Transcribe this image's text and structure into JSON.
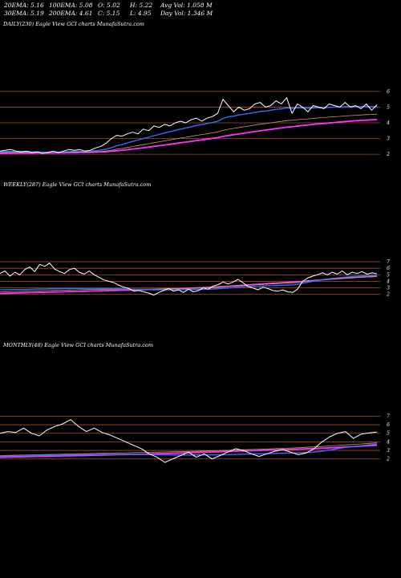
{
  "stats": {
    "ema20": "20EMA: 5.16",
    "ema100": "100EMA: 5.08",
    "open": "O: 5.02",
    "high": "H: 5.22",
    "avg_vol": "Avg Vol: 1.058  M",
    "ema30": "30EMA: 5.19",
    "ema200": "200EMA: 4.61",
    "close": "C: 5.15",
    "low": "L: 4.95",
    "day_vol": "Day Vol: 1.346  M"
  },
  "colors": {
    "background": "#000000",
    "price_line": "#ffffff",
    "ema_fast": "#3b6bff",
    "ema_slow": "#ff33ff",
    "ema_mid": "#c8a060",
    "level_line": "#a0522d"
  },
  "chart_data": [
    {
      "type": "line",
      "title": "DAILY(230) Eagle  View  GCI charts MunafaSutra.com",
      "y_ticks": [
        "6",
        "5",
        "4",
        "3",
        "2"
      ],
      "levels": [
        6,
        5,
        4,
        3,
        2
      ],
      "ylim": [
        1.8,
        6.3
      ],
      "series": [
        {
          "role": "price",
          "color": "#ffffff",
          "values": [
            2.2,
            2.25,
            2.3,
            2.2,
            2.15,
            2.2,
            2.1,
            2.15,
            2.05,
            2.1,
            2.2,
            2.1,
            2.2,
            2.3,
            2.25,
            2.3,
            2.2,
            2.25,
            2.4,
            2.5,
            2.7,
            3.0,
            3.2,
            3.15,
            3.3,
            3.4,
            3.3,
            3.6,
            3.5,
            3.8,
            3.7,
            3.9,
            3.8,
            4.0,
            4.1,
            4.0,
            4.2,
            4.3,
            4.1,
            4.3,
            4.4,
            4.6,
            5.5,
            5.1,
            4.7,
            5.0,
            4.8,
            4.9,
            5.2,
            5.3,
            5.0,
            5.1,
            5.4,
            5.2,
            5.6,
            4.6,
            5.2,
            5.0,
            4.7,
            5.1,
            5.0,
            4.9,
            5.2,
            5.1,
            5.0,
            5.3,
            5.0,
            5.1,
            4.9,
            5.2,
            4.8,
            5.15
          ]
        },
        {
          "role": "ema-fast",
          "color": "#3b6bff",
          "values": [
            2.15,
            2.17,
            2.18,
            2.18,
            2.17,
            2.17,
            2.15,
            2.15,
            2.13,
            2.13,
            2.14,
            2.14,
            2.15,
            2.17,
            2.18,
            2.19,
            2.19,
            2.2,
            2.22,
            2.26,
            2.32,
            2.42,
            2.53,
            2.62,
            2.72,
            2.82,
            2.9,
            3.0,
            3.08,
            3.18,
            3.26,
            3.35,
            3.43,
            3.52,
            3.6,
            3.67,
            3.75,
            3.83,
            3.88,
            3.95,
            4.02,
            4.1,
            4.28,
            4.38,
            4.43,
            4.5,
            4.55,
            4.6,
            4.66,
            4.72,
            4.75,
            4.8,
            4.86,
            4.89,
            4.95,
            4.92,
            4.95,
            4.96,
            4.93,
            4.95,
            4.96,
            4.95,
            4.98,
            5.0,
            5.0,
            5.03,
            5.02,
            5.04,
            5.02,
            5.05,
            5.02,
            5.05
          ]
        },
        {
          "role": "ema-mid",
          "color": "#c8a060",
          "values": [
            2.1,
            2.11,
            2.12,
            2.12,
            2.12,
            2.12,
            2.12,
            2.12,
            2.11,
            2.11,
            2.11,
            2.11,
            2.12,
            2.13,
            2.13,
            2.14,
            2.14,
            2.15,
            2.16,
            2.18,
            2.21,
            2.26,
            2.32,
            2.37,
            2.43,
            2.49,
            2.55,
            2.61,
            2.67,
            2.73,
            2.79,
            2.85,
            2.91,
            2.97,
            3.03,
            3.08,
            3.14,
            3.2,
            3.25,
            3.3,
            3.36,
            3.42,
            3.52,
            3.59,
            3.64,
            3.7,
            3.75,
            3.8,
            3.86,
            3.91,
            3.95,
            4.0,
            4.05,
            4.09,
            4.14,
            4.16,
            4.2,
            4.23,
            4.25,
            4.28,
            4.31,
            4.33,
            4.36,
            4.39,
            4.41,
            4.44,
            4.46,
            4.48,
            4.5,
            4.52,
            4.53,
            4.55
          ]
        },
        {
          "role": "ema-slow",
          "color": "#ff33ff",
          "values": [
            2.05,
            2.06,
            2.06,
            2.07,
            2.07,
            2.07,
            2.07,
            2.08,
            2.08,
            2.08,
            2.08,
            2.09,
            2.09,
            2.1,
            2.1,
            2.11,
            2.11,
            2.12,
            2.13,
            2.14,
            2.16,
            2.19,
            2.22,
            2.25,
            2.29,
            2.33,
            2.37,
            2.41,
            2.45,
            2.5,
            2.54,
            2.59,
            2.63,
            2.68,
            2.73,
            2.77,
            2.82,
            2.87,
            2.91,
            2.96,
            3.01,
            3.06,
            3.13,
            3.19,
            3.24,
            3.29,
            3.34,
            3.39,
            3.44,
            3.49,
            3.54,
            3.58,
            3.63,
            3.67,
            3.72,
            3.75,
            3.79,
            3.83,
            3.86,
            3.9,
            3.93,
            3.96,
            3.99,
            4.02,
            4.05,
            4.08,
            4.1,
            4.13,
            4.15,
            4.17,
            4.19,
            4.21
          ]
        }
      ]
    },
    {
      "type": "line",
      "title": "WEEKLY(287) Eagle  View  GCI charts MunafaSutra.com",
      "y_ticks": [
        "7",
        "6",
        "5",
        "4",
        "3",
        "2"
      ],
      "levels": [
        7,
        6,
        5,
        4,
        3,
        2
      ],
      "ylim": [
        1.6,
        7.5
      ],
      "series": [
        {
          "role": "price",
          "color": "#ffffff",
          "values": [
            5.2,
            5.6,
            4.8,
            5.4,
            5.0,
            5.8,
            6.2,
            5.5,
            6.6,
            6.3,
            6.8,
            5.9,
            5.5,
            5.2,
            5.8,
            6.0,
            5.4,
            5.1,
            5.6,
            5.0,
            4.6,
            4.2,
            4.0,
            3.8,
            3.4,
            3.1,
            2.9,
            2.5,
            2.6,
            2.4,
            2.2,
            1.9,
            2.3,
            2.6,
            2.9,
            2.5,
            2.7,
            2.3,
            2.8,
            2.4,
            2.6,
            3.0,
            2.8,
            3.3,
            3.5,
            3.9,
            3.6,
            3.9,
            4.3,
            3.8,
            3.2,
            3.0,
            2.7,
            3.1,
            2.9,
            2.6,
            2.5,
            2.7,
            2.4,
            2.3,
            2.8,
            4.0,
            4.5,
            4.8,
            5.0,
            5.3,
            5.0,
            5.4,
            5.1,
            5.6,
            5.0,
            5.4,
            5.2,
            5.5,
            5.1,
            5.3,
            5.15
          ]
        },
        {
          "role": "ema-fast",
          "color": "#3b6bff",
          "values": [
            2.7,
            2.72,
            2.73,
            2.74,
            2.75,
            2.76,
            2.78,
            2.8,
            2.82,
            2.84,
            2.86,
            2.88,
            2.89,
            2.9,
            2.91,
            2.92,
            2.92,
            2.93,
            2.93,
            2.93,
            2.92,
            2.91,
            2.9,
            2.88,
            2.86,
            2.84,
            2.82,
            2.79,
            2.77,
            2.75,
            2.73,
            2.71,
            2.7,
            2.7,
            2.71,
            2.72,
            2.73,
            2.73,
            2.74,
            2.75,
            2.76,
            2.78,
            2.8,
            2.83,
            2.87,
            2.93,
            2.98,
            3.04,
            3.12,
            3.18,
            3.22,
            3.25,
            3.27,
            3.3,
            3.33,
            3.35,
            3.38,
            3.41,
            3.44,
            3.47,
            3.55,
            3.7,
            3.85,
            4.0,
            4.12,
            4.25,
            4.35,
            4.45,
            4.52,
            4.6,
            4.66,
            4.72,
            4.77,
            4.82,
            4.85,
            4.88,
            4.9
          ]
        },
        {
          "role": "ema-mid",
          "color": "#c8a060",
          "values": [
            2.4,
            2.42,
            2.44,
            2.46,
            2.48,
            2.5,
            2.52,
            2.54,
            2.56,
            2.58,
            2.6,
            2.62,
            2.64,
            2.66,
            2.68,
            2.7,
            2.72,
            2.73,
            2.74,
            2.75,
            2.76,
            2.77,
            2.78,
            2.79,
            2.79,
            2.8,
            2.8,
            2.81,
            2.81,
            2.82,
            2.82,
            2.83,
            2.84,
            2.85,
            2.86,
            2.88,
            2.9,
            2.92,
            2.94,
            2.96,
            2.98,
            3.01,
            3.04,
            3.08,
            3.12,
            3.17,
            3.22,
            3.27,
            3.33,
            3.38,
            3.42,
            3.46,
            3.5,
            3.54,
            3.58,
            3.62,
            3.66,
            3.7,
            3.74,
            3.78,
            3.84,
            3.92,
            4.0,
            4.08,
            4.15,
            4.22,
            4.28,
            4.34,
            4.4,
            4.45,
            4.5,
            4.55,
            4.59,
            4.63,
            4.67,
            4.7,
            4.73
          ]
        },
        {
          "role": "ema-slow",
          "color": "#ff33ff",
          "values": [
            2.15,
            2.17,
            2.19,
            2.21,
            2.23,
            2.25,
            2.27,
            2.29,
            2.31,
            2.33,
            2.35,
            2.37,
            2.39,
            2.41,
            2.43,
            2.45,
            2.47,
            2.49,
            2.51,
            2.53,
            2.55,
            2.57,
            2.59,
            2.61,
            2.63,
            2.65,
            2.67,
            2.69,
            2.71,
            2.73,
            2.75,
            2.77,
            2.79,
            2.81,
            2.83,
            2.86,
            2.89,
            2.92,
            2.95,
            2.98,
            3.01,
            3.04,
            3.08,
            3.12,
            3.16,
            3.2,
            3.25,
            3.3,
            3.35,
            3.4,
            3.45,
            3.5,
            3.55,
            3.6,
            3.65,
            3.7,
            3.75,
            3.8,
            3.85,
            3.9,
            3.95,
            4.0,
            4.06,
            4.12,
            4.18,
            4.24,
            4.3,
            4.36,
            4.42,
            4.48,
            4.53,
            4.58,
            4.63,
            4.68,
            4.72,
            4.76,
            4.8
          ]
        }
      ]
    },
    {
      "type": "line",
      "title": "MONTHLY(48) Eagle  View  GCI charts MunafaSutra.com",
      "y_ticks": [
        "7",
        "6",
        "5",
        "4",
        "3",
        "2"
      ],
      "levels": [
        7,
        6,
        5,
        4,
        3,
        2
      ],
      "ylim": [
        1.6,
        7.6
      ],
      "series": [
        {
          "role": "price",
          "color": "#ffffff",
          "values": [
            5.0,
            5.2,
            5.1,
            5.6,
            5.0,
            4.7,
            5.4,
            5.8,
            6.1,
            6.6,
            5.8,
            5.2,
            5.6,
            5.1,
            4.8,
            4.4,
            4.0,
            3.6,
            3.2,
            2.6,
            2.2,
            1.6,
            2.0,
            2.4,
            2.8,
            2.2,
            2.6,
            2.0,
            2.4,
            2.8,
            3.2,
            3.0,
            2.6,
            2.3,
            2.6,
            2.9,
            3.1,
            2.8,
            2.5,
            2.7,
            3.2,
            4.0,
            4.6,
            5.0,
            5.2,
            4.4,
            4.9,
            5.05,
            5.15
          ]
        },
        {
          "role": "ema-fast",
          "color": "#3b6bff",
          "values": [
            2.3,
            2.32,
            2.34,
            2.36,
            2.38,
            2.4,
            2.42,
            2.44,
            2.46,
            2.48,
            2.5,
            2.52,
            2.53,
            2.54,
            2.55,
            2.55,
            2.55,
            2.54,
            2.53,
            2.52,
            2.5,
            2.48,
            2.47,
            2.46,
            2.46,
            2.46,
            2.47,
            2.47,
            2.48,
            2.5,
            2.53,
            2.56,
            2.58,
            2.6,
            2.62,
            2.65,
            2.68,
            2.7,
            2.72,
            2.75,
            2.8,
            2.9,
            3.05,
            3.2,
            3.35,
            3.45,
            3.55,
            3.65,
            3.75
          ]
        },
        {
          "role": "ema-mid",
          "color": "#c8a060",
          "values": [
            2.4,
            2.42,
            2.44,
            2.46,
            2.48,
            2.5,
            2.52,
            2.54,
            2.56,
            2.58,
            2.6,
            2.62,
            2.64,
            2.66,
            2.68,
            2.7,
            2.72,
            2.74,
            2.76,
            2.78,
            2.8,
            2.82,
            2.84,
            2.86,
            2.88,
            2.9,
            2.93,
            2.96,
            2.99,
            3.02,
            3.05,
            3.08,
            3.11,
            3.14,
            3.17,
            3.2,
            3.24,
            3.28,
            3.32,
            3.36,
            3.41,
            3.46,
            3.52,
            3.58,
            3.64,
            3.7,
            3.76,
            3.82,
            3.88
          ]
        },
        {
          "role": "ema-slow",
          "color": "#ff33ff",
          "values": [
            2.2,
            2.22,
            2.24,
            2.26,
            2.28,
            2.3,
            2.32,
            2.34,
            2.36,
            2.38,
            2.4,
            2.42,
            2.44,
            2.46,
            2.48,
            2.5,
            2.52,
            2.54,
            2.56,
            2.58,
            2.61,
            2.64,
            2.67,
            2.7,
            2.73,
            2.76,
            2.79,
            2.82,
            2.85,
            2.88,
            2.91,
            2.94,
            2.97,
            3.0,
            3.03,
            3.06,
            3.09,
            3.12,
            3.15,
            3.18,
            3.21,
            3.25,
            3.3,
            3.35,
            3.4,
            3.45,
            3.5,
            3.55,
            3.6
          ]
        }
      ]
    }
  ]
}
